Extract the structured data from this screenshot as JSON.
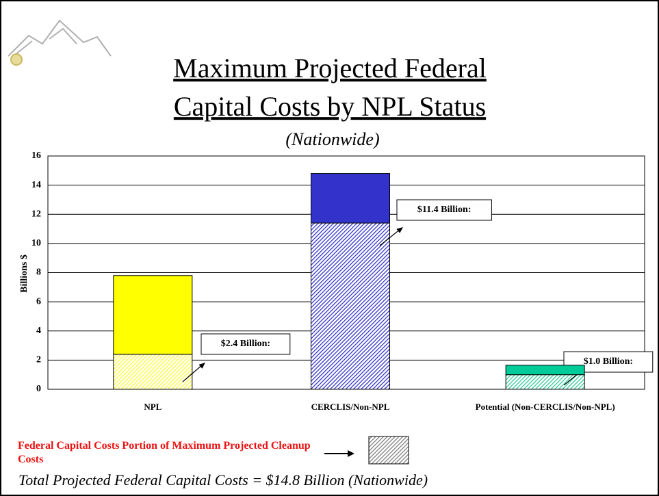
{
  "chart_data": {
    "type": "stacked-bar",
    "title": [
      "Maximum Projected Federal",
      "Capital Costs by NPL Status"
    ],
    "subtitle": "(Nationwide)",
    "y_label": "Billions $",
    "categories": [
      "NPL",
      "CERCLIS/Non-NPL",
      "Potential (Non-CERCLIS/Non-NPL)"
    ],
    "series": [
      {
        "name": "Federal Capital Costs Portion of Maximum Projected Cleanup Costs",
        "colors": [
          "#ffff33",
          "#3333cc",
          "#33cc99"
        ],
        "hatched": true,
        "values": [
          2.4,
          11.4,
          1.0
        ],
        "value_labels": [
          "$2.4 Billion:",
          "$11.4 Billion:",
          "$1.0 Billion:"
        ]
      },
      {
        "colors": [
          "#ffff00",
          "#3333cc",
          "#00cc99"
        ],
        "hatched": false,
        "values": [
          5.4,
          3.4,
          0.65
        ]
      }
    ],
    "legend_color": "#808080",
    "ylim": [
      0,
      16
    ],
    "yticks": [
      0,
      2,
      4,
      6,
      8,
      10,
      12,
      14,
      16
    ],
    "grid": true,
    "footnote": "Total Projected Federal Capital Costs = $14.8 Billion (Nationwide)"
  }
}
